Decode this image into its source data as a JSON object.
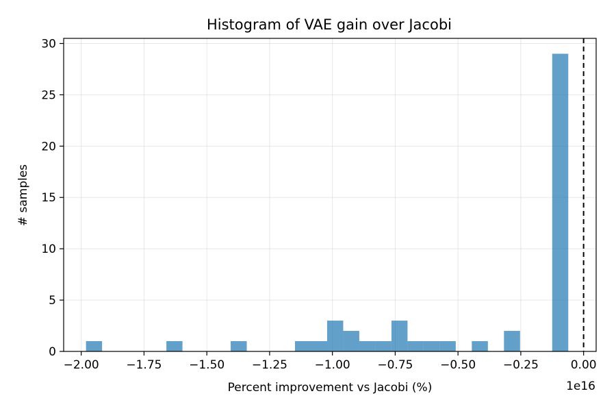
{
  "chart_data": {
    "type": "bar",
    "title": "Histogram of VAE gain over Jacobi",
    "xlabel": "Percent improvement vs Jacobi (%)",
    "ylabel": "# samples",
    "x_offset_label": "1e16",
    "x_unit_scale": 1e+16,
    "xlim": [
      -2.07,
      0.05
    ],
    "ylim": [
      0,
      30.5
    ],
    "x_ticks": [
      -2.0,
      -1.75,
      -1.5,
      -1.25,
      -1.0,
      -0.75,
      -0.5,
      -0.25,
      0.0
    ],
    "x_tick_labels": [
      "−2.00",
      "−1.75",
      "−1.50",
      "−1.25",
      "−1.00",
      "−0.75",
      "−0.50",
      "−0.25",
      "0.00"
    ],
    "y_ticks": [
      0,
      5,
      10,
      15,
      20,
      25,
      30
    ],
    "y_tick_labels": [
      "0",
      "5",
      "10",
      "15",
      "20",
      "25",
      "30"
    ],
    "grid": true,
    "bar_color": "#1f77b4",
    "bar_alpha": 0.7,
    "reference_line": {
      "x": 0.0,
      "style": "dashed",
      "color": "#000000"
    },
    "bins": [
      {
        "x0": -1.981,
        "x1": -1.917,
        "count": 1
      },
      {
        "x0": -1.917,
        "x1": -1.853,
        "count": 0
      },
      {
        "x0": -1.853,
        "x1": -1.789,
        "count": 0
      },
      {
        "x0": -1.789,
        "x1": -1.725,
        "count": 0
      },
      {
        "x0": -1.725,
        "x1": -1.661,
        "count": 0
      },
      {
        "x0": -1.661,
        "x1": -1.597,
        "count": 1
      },
      {
        "x0": -1.597,
        "x1": -1.533,
        "count": 0
      },
      {
        "x0": -1.533,
        "x1": -1.469,
        "count": 0
      },
      {
        "x0": -1.469,
        "x1": -1.405,
        "count": 0
      },
      {
        "x0": -1.405,
        "x1": -1.341,
        "count": 1
      },
      {
        "x0": -1.341,
        "x1": -1.277,
        "count": 0
      },
      {
        "x0": -1.277,
        "x1": -1.213,
        "count": 0
      },
      {
        "x0": -1.213,
        "x1": -1.149,
        "count": 0
      },
      {
        "x0": -1.149,
        "x1": -1.085,
        "count": 1
      },
      {
        "x0": -1.085,
        "x1": -1.021,
        "count": 1
      },
      {
        "x0": -1.021,
        "x1": -0.957,
        "count": 3
      },
      {
        "x0": -0.957,
        "x1": -0.893,
        "count": 2
      },
      {
        "x0": -0.893,
        "x1": -0.829,
        "count": 1
      },
      {
        "x0": -0.829,
        "x1": -0.765,
        "count": 1
      },
      {
        "x0": -0.765,
        "x1": -0.701,
        "count": 3
      },
      {
        "x0": -0.701,
        "x1": -0.637,
        "count": 1
      },
      {
        "x0": -0.637,
        "x1": -0.573,
        "count": 1
      },
      {
        "x0": -0.573,
        "x1": -0.509,
        "count": 1
      },
      {
        "x0": -0.509,
        "x1": -0.445,
        "count": 0
      },
      {
        "x0": -0.445,
        "x1": -0.381,
        "count": 1
      },
      {
        "x0": -0.381,
        "x1": -0.317,
        "count": 0
      },
      {
        "x0": -0.317,
        "x1": -0.253,
        "count": 2
      },
      {
        "x0": -0.253,
        "x1": -0.189,
        "count": 0
      },
      {
        "x0": -0.189,
        "x1": -0.125,
        "count": 0
      },
      {
        "x0": -0.125,
        "x1": -0.061,
        "count": 29
      }
    ]
  }
}
